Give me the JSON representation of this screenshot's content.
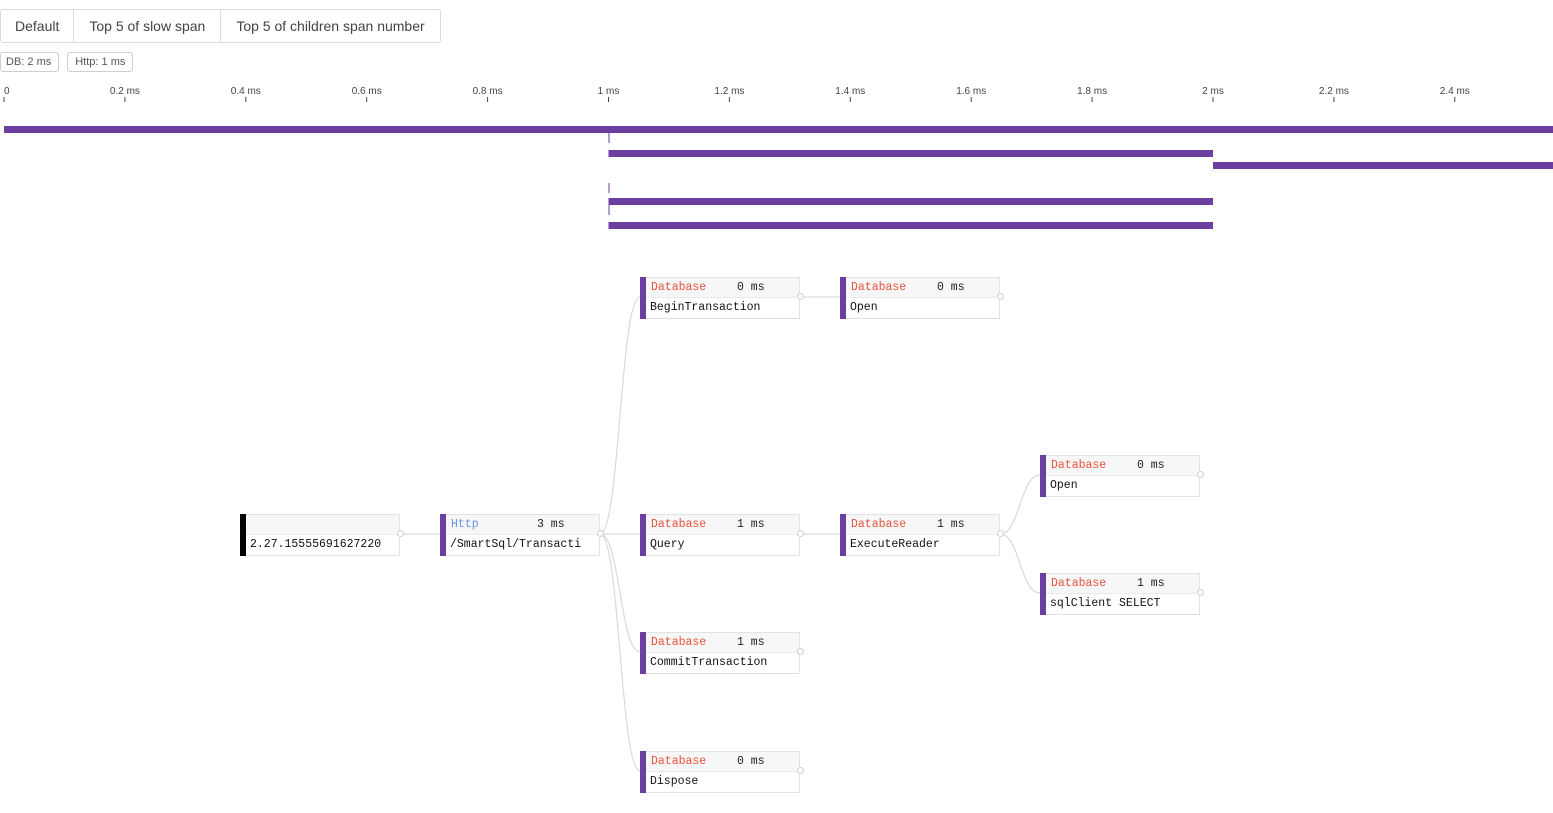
{
  "tabs": [
    {
      "label": "Default"
    },
    {
      "label": "Top 5 of slow span"
    },
    {
      "label": "Top 5 of children span number"
    }
  ],
  "summary_tags": [
    {
      "label": "DB: 2 ms"
    },
    {
      "label": "Http: 1 ms"
    }
  ],
  "timeline": {
    "tick_labels": [
      "0",
      "0.2 ms",
      "0.4 ms",
      "0.6 ms",
      "0.8 ms",
      "1 ms",
      "1.2 ms",
      "1.4 ms",
      "1.6 ms",
      "1.8 ms",
      "2 ms",
      "2.2 ms",
      "2.4 ms"
    ],
    "unit": "ms",
    "range_ms": [
      0,
      2.565
    ],
    "bar_color": "#6b3fa0",
    "spans": [
      {
        "start_ms": 0,
        "end_ms": 2.565
      },
      {
        "start_ms": 1,
        "end_ms": 1
      },
      {
        "start_ms": 1,
        "end_ms": 2
      },
      {
        "start_ms": 2,
        "end_ms": 2.565
      },
      {
        "start_ms": 1,
        "end_ms": 1
      },
      {
        "start_ms": 1,
        "end_ms": 2
      },
      {
        "start_ms": 1,
        "end_ms": 1
      },
      {
        "start_ms": 1,
        "end_ms": 2
      }
    ]
  },
  "graph": {
    "colors": {
      "database": "#e8513a",
      "http": "#6495ed",
      "span_bar": "#6b3fa0",
      "root_bar": "#000000"
    },
    "nodes": [
      {
        "id": "root",
        "type": "",
        "duration": "",
        "name": "2.27.15555691627220",
        "icon": "trace-root"
      },
      {
        "id": "http",
        "type": "Http",
        "duration": "3 ms",
        "name": "/SmartSql/Transacti"
      },
      {
        "id": "begin",
        "type": "Database",
        "duration": "0 ms",
        "name": "BeginTransaction"
      },
      {
        "id": "open1",
        "type": "Database",
        "duration": "0 ms",
        "name": "Open"
      },
      {
        "id": "query",
        "type": "Database",
        "duration": "1 ms",
        "name": "Query"
      },
      {
        "id": "exec",
        "type": "Database",
        "duration": "1 ms",
        "name": "ExecuteReader"
      },
      {
        "id": "open2",
        "type": "Database",
        "duration": "0 ms",
        "name": "Open"
      },
      {
        "id": "select",
        "type": "Database",
        "duration": "1 ms",
        "name": "sqlClient SELECT"
      },
      {
        "id": "commit",
        "type": "Database",
        "duration": "1 ms",
        "name": "CommitTransaction"
      },
      {
        "id": "dispose",
        "type": "Database",
        "duration": "0 ms",
        "name": "Dispose"
      }
    ]
  }
}
